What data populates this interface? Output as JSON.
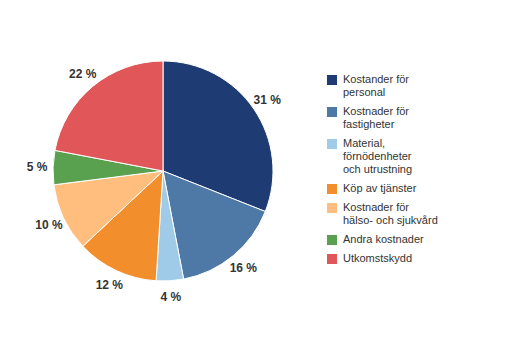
{
  "chart_data": {
    "type": "pie",
    "categories": [
      "Kostander för\npersonal",
      "Kostnader för\nfastigheter",
      "Material,\nförnödenheter\noch utrustning",
      "Köp av tjänster",
      "Kostnader för\nhälso- och sjukvård",
      "Andra kostnader",
      "Utkomstskydd"
    ],
    "values": [
      31,
      16,
      4,
      12,
      10,
      5,
      22
    ],
    "value_labels": [
      "31 %",
      "16 %",
      "4 %",
      "12 %",
      "10 %",
      "5 %",
      "22 %"
    ],
    "colors": [
      "#1f3b73",
      "#4e79a7",
      "#a0cbe8",
      "#f28e2b",
      "#ffbe7d",
      "#59a14f",
      "#e15759"
    ],
    "data_labels": true,
    "legend": "right"
  }
}
